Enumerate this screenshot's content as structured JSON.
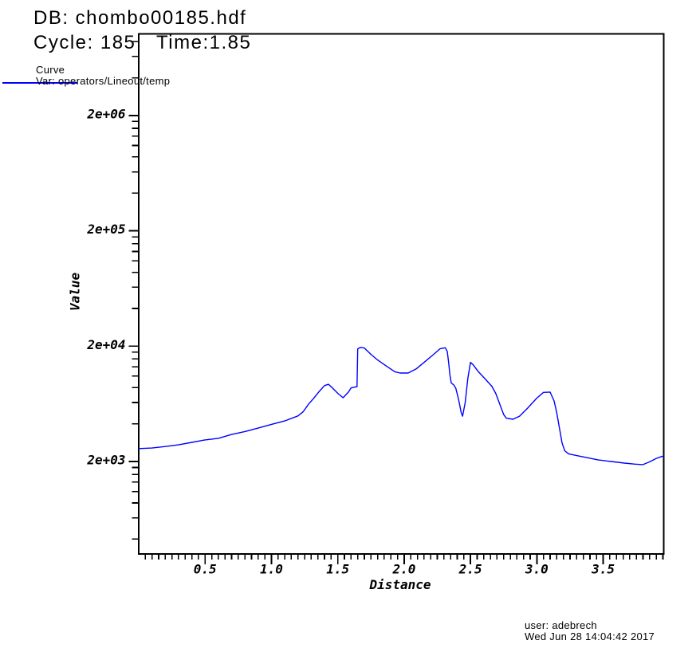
{
  "window": {
    "bg": "#ffffff",
    "fg": "#000000"
  },
  "header": {
    "db_title": "DB: chombo00185.hdf",
    "cycle_label": "Cycle: 185",
    "time_label": "Time:1.85"
  },
  "legend": {
    "plot_type": "Curve",
    "var_label": "Var: operators/Lineout/temp",
    "line_color": "#0000ff"
  },
  "footer": {
    "user_line": "user: adebrech",
    "date_line": "Wed Jun 28 14:04:42 2017"
  },
  "chart_data": {
    "type": "line",
    "title": "",
    "xlabel": "Distance",
    "ylabel": "Value",
    "x_scale": "linear",
    "y_scale": "log",
    "grid": false,
    "legend_position": "top-left",
    "xlim": [
      0,
      3.956
    ],
    "ylim": [
      316,
      10210000
    ],
    "x_minor_step": 0.05,
    "x_ticks": [
      {
        "v": 0.5,
        "label": "0.5"
      },
      {
        "v": 1.0,
        "label": "1.0"
      },
      {
        "v": 1.5,
        "label": "1.5"
      },
      {
        "v": 2.0,
        "label": "2.0"
      },
      {
        "v": 2.5,
        "label": "2.5"
      },
      {
        "v": 3.0,
        "label": "3.0"
      },
      {
        "v": 3.5,
        "label": "3.5"
      }
    ],
    "y_ticks": [
      {
        "v": 2000,
        "label": "2e+03"
      },
      {
        "v": 20000,
        "label": "2e+04"
      },
      {
        "v": 200000,
        "label": "2e+05"
      },
      {
        "v": 2000000,
        "label": "2e+06"
      }
    ],
    "series": [
      {
        "name": "operators/Lineout/temp",
        "color": "#0000ff",
        "points": [
          [
            0.0,
            2590
          ],
          [
            0.1,
            2620
          ],
          [
            0.2,
            2700
          ],
          [
            0.3,
            2790
          ],
          [
            0.4,
            2930
          ],
          [
            0.5,
            3080
          ],
          [
            0.6,
            3180
          ],
          [
            0.7,
            3430
          ],
          [
            0.8,
            3640
          ],
          [
            0.9,
            3900
          ],
          [
            1.0,
            4200
          ],
          [
            1.1,
            4500
          ],
          [
            1.2,
            4970
          ],
          [
            1.24,
            5420
          ],
          [
            1.28,
            6300
          ],
          [
            1.32,
            7100
          ],
          [
            1.36,
            8100
          ],
          [
            1.4,
            9100
          ],
          [
            1.43,
            9350
          ],
          [
            1.46,
            8700
          ],
          [
            1.5,
            7800
          ],
          [
            1.54,
            7150
          ],
          [
            1.58,
            8000
          ],
          [
            1.6,
            8700
          ],
          [
            1.64,
            8900
          ],
          [
            1.645,
            8900
          ],
          [
            1.65,
            19000
          ],
          [
            1.67,
            19500
          ],
          [
            1.7,
            19300
          ],
          [
            1.75,
            17000
          ],
          [
            1.8,
            15200
          ],
          [
            1.86,
            13600
          ],
          [
            1.93,
            12000
          ],
          [
            1.97,
            11700
          ],
          [
            2.03,
            11700
          ],
          [
            2.09,
            12700
          ],
          [
            2.16,
            14800
          ],
          [
            2.23,
            17300
          ],
          [
            2.27,
            19000
          ],
          [
            2.31,
            19400
          ],
          [
            2.325,
            18000
          ],
          [
            2.335,
            14500
          ],
          [
            2.345,
            11300
          ],
          [
            2.355,
            9600
          ],
          [
            2.375,
            9200
          ],
          [
            2.39,
            8600
          ],
          [
            2.41,
            6900
          ],
          [
            2.43,
            5300
          ],
          [
            2.44,
            4950
          ],
          [
            2.46,
            6500
          ],
          [
            2.48,
            10500
          ],
          [
            2.5,
            14500
          ],
          [
            2.52,
            13800
          ],
          [
            2.56,
            12000
          ],
          [
            2.61,
            10400
          ],
          [
            2.66,
            9000
          ],
          [
            2.69,
            7800
          ],
          [
            2.72,
            6300
          ],
          [
            2.75,
            5100
          ],
          [
            2.77,
            4750
          ],
          [
            2.82,
            4650
          ],
          [
            2.87,
            4950
          ],
          [
            2.93,
            5800
          ],
          [
            3.0,
            7100
          ],
          [
            3.05,
            7950
          ],
          [
            3.1,
            8000
          ],
          [
            3.13,
            6700
          ],
          [
            3.15,
            5300
          ],
          [
            3.17,
            3900
          ],
          [
            3.19,
            2900
          ],
          [
            3.21,
            2480
          ],
          [
            3.24,
            2330
          ],
          [
            3.3,
            2250
          ],
          [
            3.38,
            2160
          ],
          [
            3.46,
            2070
          ],
          [
            3.56,
            2000
          ],
          [
            3.66,
            1940
          ],
          [
            3.74,
            1900
          ],
          [
            3.8,
            1880
          ],
          [
            3.85,
            1990
          ],
          [
            3.9,
            2130
          ],
          [
            3.94,
            2210
          ],
          [
            3.956,
            2240
          ]
        ]
      }
    ]
  }
}
